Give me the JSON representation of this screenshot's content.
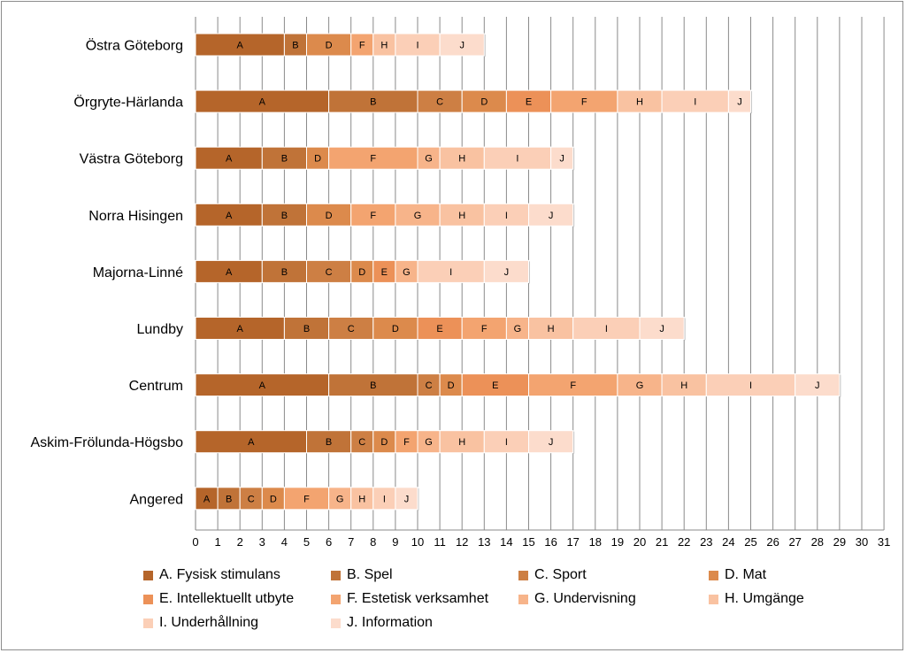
{
  "chart_data": {
    "type": "bar",
    "orientation": "horizontal",
    "stacked": true,
    "title": "",
    "xlabel": "",
    "ylabel": "",
    "xlim": [
      0,
      31
    ],
    "xticks": [
      0,
      1,
      2,
      3,
      4,
      5,
      6,
      7,
      8,
      9,
      10,
      11,
      12,
      13,
      14,
      15,
      16,
      17,
      18,
      19,
      20,
      21,
      22,
      23,
      24,
      25,
      26,
      27,
      28,
      29,
      30,
      31
    ],
    "grid": true,
    "legend_position": "bottom",
    "categories": [
      "Östra Göteborg",
      "Örgryte-Härlanda",
      "Västra Göteborg",
      "Norra Hisingen",
      "Majorna-Linné",
      "Lundby",
      "Centrum",
      "Askim-Frölunda-Högsbo",
      "Angered"
    ],
    "series": [
      {
        "name": "A. Fysisk stimulans",
        "short": "A",
        "color": "#b5652a",
        "values": [
          4,
          6,
          3,
          3,
          3,
          4,
          6,
          5,
          1
        ]
      },
      {
        "name": "B. Spel",
        "short": "B",
        "color": "#c07338",
        "values": [
          1,
          4,
          2,
          2,
          2,
          2,
          4,
          2,
          1
        ]
      },
      {
        "name": "C. Sport",
        "short": "C",
        "color": "#cd7f44",
        "values": [
          0,
          2,
          0,
          0,
          2,
          2,
          1,
          1,
          1
        ]
      },
      {
        "name": "D. Mat",
        "short": "D",
        "color": "#dc8a4c",
        "values": [
          2,
          2,
          1,
          2,
          1,
          2,
          1,
          1,
          1
        ]
      },
      {
        "name": "E. Intellektuellt utbyte",
        "short": "E",
        "color": "#ec9158",
        "values": [
          0,
          2,
          0,
          0,
          1,
          2,
          3,
          0,
          0
        ]
      },
      {
        "name": "F. Estetisk verksamhet",
        "short": "F",
        "color": "#f3a470",
        "values": [
          1,
          3,
          4,
          2,
          0,
          2,
          4,
          1,
          2
        ]
      },
      {
        "name": "G. Undervisning",
        "short": "G",
        "color": "#f7b48a",
        "values": [
          0,
          0,
          1,
          2,
          1,
          1,
          2,
          1,
          1
        ]
      },
      {
        "name": "H. Umgänge",
        "short": "H",
        "color": "#f9c2a1",
        "values": [
          1,
          2,
          2,
          2,
          0,
          2,
          2,
          2,
          1
        ]
      },
      {
        "name": "I. Underhållning",
        "short": "I",
        "color": "#fbcfb7",
        "values": [
          2,
          3,
          3,
          2,
          3,
          3,
          4,
          2,
          1
        ]
      },
      {
        "name": "J. Information",
        "short": "J",
        "color": "#fcdccc",
        "values": [
          2,
          1,
          1,
          2,
          2,
          2,
          2,
          2,
          1
        ]
      }
    ]
  }
}
